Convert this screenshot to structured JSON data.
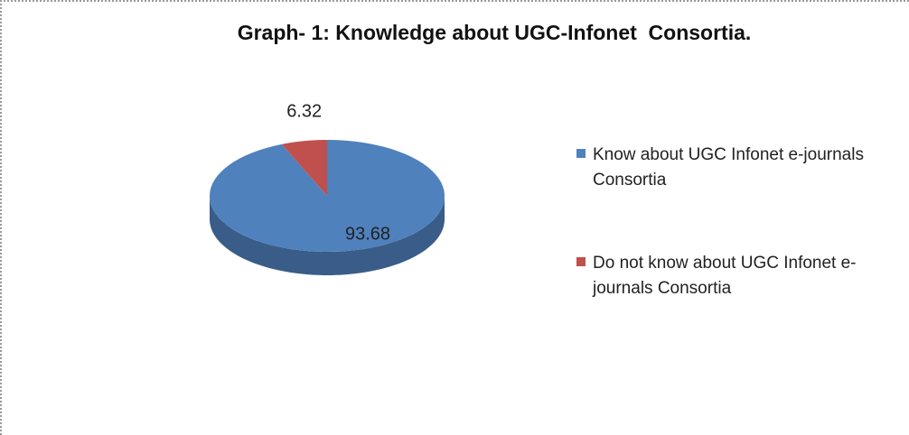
{
  "chart_data": {
    "type": "pie",
    "title": "Graph- 1: Knowledge about UGC-Infonet  Consortia.",
    "categories": [
      "Know about UGC Infonet e-journals Consortia",
      "Do not know about UGC Infonet e-journals Consortia"
    ],
    "values": [
      93.68,
      6.32
    ],
    "colors": [
      "#4f81bd",
      "#c0504d"
    ],
    "legend": "right"
  }
}
